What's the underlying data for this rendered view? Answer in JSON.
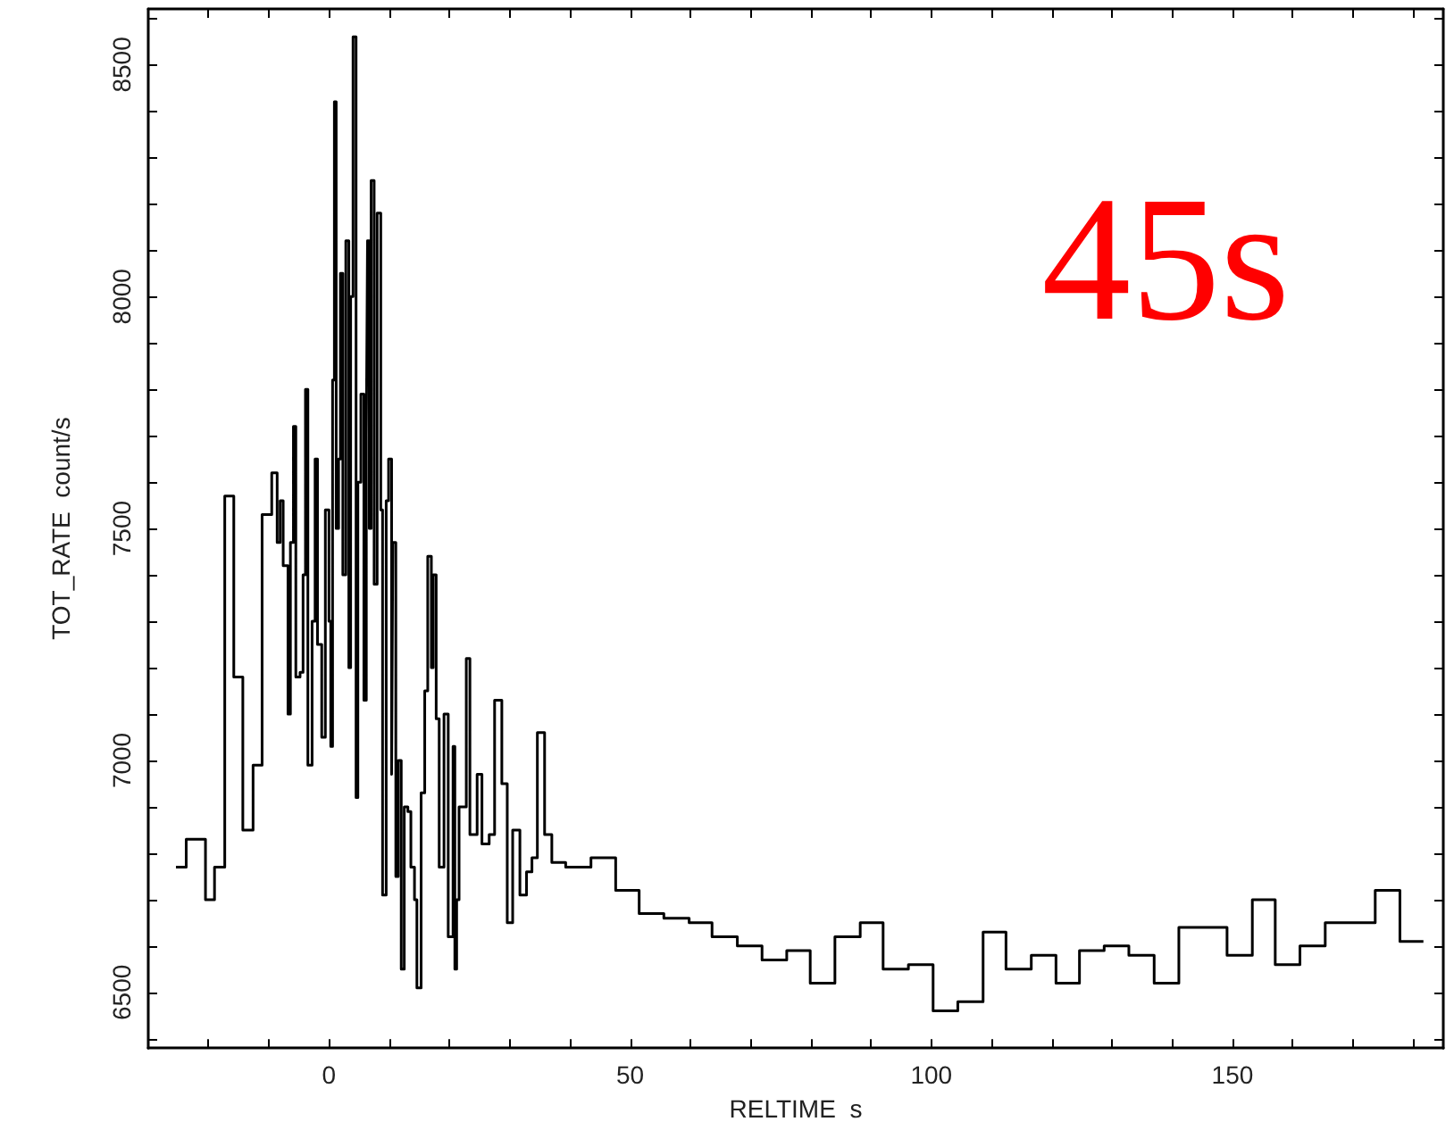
{
  "chart_data": {
    "type": "step",
    "xlabel": "RELTIME  s",
    "ylabel": "TOT_RATE  count/s",
    "annotations": [
      "45s"
    ],
    "marker": "none",
    "grid": false,
    "xlim": [
      -30,
      185
    ],
    "ylim": [
      6380,
      8620
    ],
    "xticks": [
      {
        "value": -20,
        "label": null
      },
      {
        "value": -10,
        "label": null
      },
      0,
      {
        "value": 10,
        "label": null
      },
      {
        "value": 20,
        "label": null
      },
      {
        "value": 30,
        "label": null
      },
      {
        "value": 40,
        "label": null
      },
      50,
      {
        "value": 60,
        "label": null
      },
      {
        "value": 70,
        "label": null
      },
      {
        "value": 80,
        "label": null
      },
      {
        "value": 90,
        "label": null
      },
      100,
      {
        "value": 110,
        "label": null
      },
      {
        "value": 120,
        "label": null
      },
      {
        "value": 130,
        "label": null
      },
      {
        "value": 140,
        "label": null
      },
      150,
      {
        "value": 160,
        "label": null
      },
      {
        "value": 170,
        "label": null
      },
      {
        "value": 180,
        "label": null
      }
    ],
    "yticks": [
      {
        "value": 6400,
        "label": null
      },
      6500,
      {
        "value": 6600,
        "label": null
      },
      {
        "value": 6700,
        "label": null
      },
      {
        "value": 6800,
        "label": null
      },
      {
        "value": 6900,
        "label": null
      },
      7000,
      {
        "value": 7100,
        "label": null
      },
      {
        "value": 7200,
        "label": null
      },
      {
        "value": 7300,
        "label": null
      },
      {
        "value": 7400,
        "label": null
      },
      7500,
      {
        "value": 7600,
        "label": null
      },
      {
        "value": 7700,
        "label": null
      },
      {
        "value": 7800,
        "label": null
      },
      {
        "value": 7900,
        "label": null
      },
      8000,
      {
        "value": 8100,
        "label": null
      },
      {
        "value": 8200,
        "label": null
      },
      {
        "value": 8300,
        "label": null
      },
      {
        "value": 8400,
        "label": null
      },
      8500,
      {
        "value": 8600,
        "label": null
      }
    ],
    "series": [
      {
        "color": "#000000",
        "x": [
          -25.4,
          -23.7,
          -20.5,
          -19.0,
          -17.3,
          -15.8,
          -14.3,
          -12.6,
          -11.1,
          -9.5,
          -8.6,
          -8.1,
          -7.6,
          -6.8,
          -6.4,
          -5.9,
          -5.5,
          -4.8,
          -4.3,
          -3.9,
          -3.5,
          -2.8,
          -2.3,
          -1.9,
          -1.2,
          -0.6,
          0.0,
          0.3,
          0.6,
          0.9,
          1.2,
          1.6,
          1.9,
          2.3,
          2.8,
          3.3,
          3.6,
          4.0,
          4.5,
          4.8,
          5.3,
          5.8,
          6.2,
          6.4,
          6.7,
          7.0,
          7.5,
          8.0,
          8.6,
          8.9,
          9.5,
          9.9,
          10.4,
          10.6,
          11.1,
          11.5,
          12.0,
          12.5,
          13.1,
          13.6,
          14.2,
          14.6,
          15.3,
          15.9,
          16.4,
          17.0,
          17.3,
          17.8,
          18.3,
          19.1,
          19.8,
          20.6,
          20.9,
          21.2,
          21.6,
          22.8,
          23.4,
          24.6,
          25.4,
          26.6,
          27.5,
          28.7,
          29.6,
          30.5,
          31.7,
          32.8,
          33.7,
          34.6,
          35.8,
          37.0,
          39.3,
          43.5,
          47.6,
          51.5,
          55.6,
          59.8,
          63.6,
          67.8,
          71.9,
          76.0,
          79.9,
          84.0,
          88.2,
          92.0,
          96.2,
          100.3,
          104.4,
          108.6,
          112.4,
          116.6,
          120.7,
          124.6,
          128.7,
          132.8,
          137.0,
          141.1,
          145.0,
          149.1,
          153.3,
          157.1,
          161.2,
          165.4,
          169.5,
          173.7,
          177.8,
          181.7
        ],
        "values": [
          6770,
          6830,
          6700,
          6770,
          7570,
          7180,
          6850,
          6990,
          7530,
          7620,
          7470,
          7560,
          7420,
          7100,
          7470,
          7720,
          7180,
          7190,
          7400,
          7800,
          6990,
          7300,
          7650,
          7250,
          7050,
          7540,
          7300,
          7030,
          7820,
          8420,
          7500,
          7650,
          8050,
          7400,
          8120,
          7200,
          8000,
          8560,
          6920,
          7600,
          7790,
          7130,
          7700,
          8120,
          7500,
          8250,
          7380,
          8180,
          7540,
          6710,
          7560,
          7650,
          6970,
          7470,
          6750,
          7000,
          6550,
          6900,
          6890,
          6770,
          6700,
          6510,
          6930,
          7150,
          7440,
          7200,
          7400,
          7090,
          6770,
          7100,
          6620,
          7030,
          6550,
          6700,
          6900,
          7220,
          6840,
          6970,
          6820,
          6840,
          7130,
          6950,
          6650,
          6850,
          6710,
          6760,
          6790,
          7060,
          6840,
          6780,
          6770,
          6790,
          6720,
          6670,
          6660,
          6650,
          6620,
          6600,
          6570,
          6590,
          6520,
          6620,
          6650,
          6550,
          6560,
          6460,
          6480,
          6630,
          6550,
          6580,
          6520,
          6590,
          6600,
          6580,
          6520,
          6640,
          6640,
          6580,
          6700,
          6560,
          6600,
          6650,
          6650,
          6720,
          6610,
          6610
        ]
      }
    ]
  }
}
